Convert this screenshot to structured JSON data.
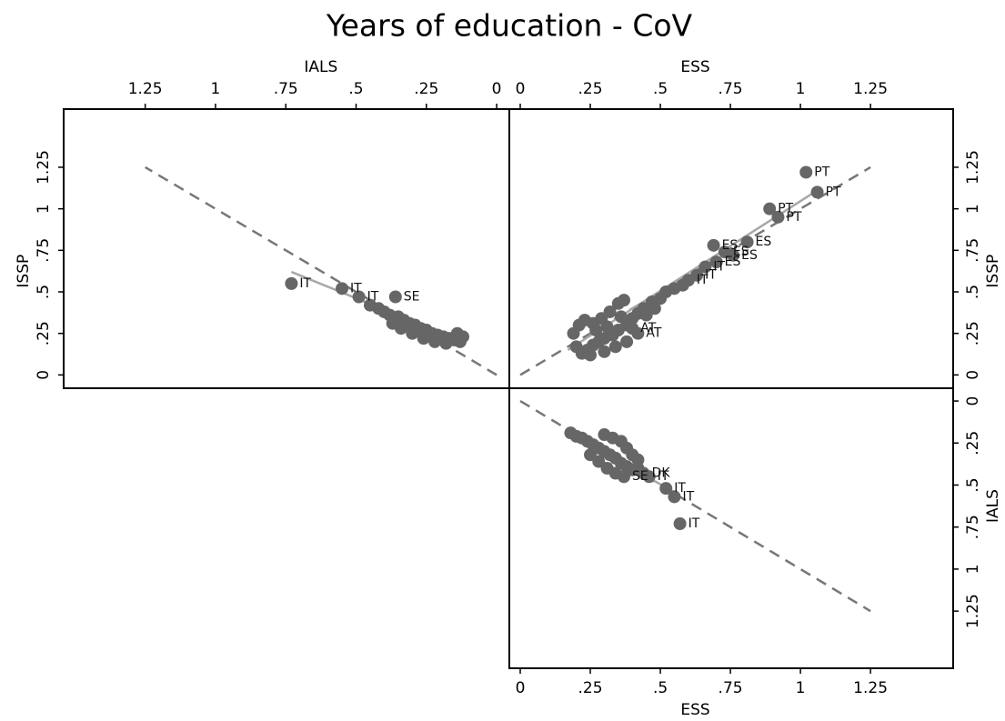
{
  "title": "Years of education - CoV",
  "chart_data": [
    {
      "type": "scatter",
      "x_label": "IALS",
      "y_label": "ISSP",
      "x_axis_side": "top",
      "y_axis_side": "left",
      "color": "#666666",
      "x": [
        0.73,
        0.55,
        0.49,
        0.36,
        0.45,
        0.42,
        0.4,
        0.38,
        0.35,
        0.33,
        0.31,
        0.29,
        0.27,
        0.25,
        0.23,
        0.21,
        0.19,
        0.17,
        0.15,
        0.13,
        0.3,
        0.26,
        0.22,
        0.18,
        0.34,
        0.37,
        0.14,
        0.12
      ],
      "y": [
        0.55,
        0.52,
        0.47,
        0.47,
        0.42,
        0.4,
        0.38,
        0.36,
        0.35,
        0.33,
        0.31,
        0.3,
        0.28,
        0.27,
        0.25,
        0.24,
        0.23,
        0.22,
        0.21,
        0.2,
        0.25,
        0.22,
        0.2,
        0.19,
        0.28,
        0.31,
        0.25,
        0.23
      ],
      "labels": [
        "IT",
        "IT",
        "IT",
        "SE",
        null,
        null,
        null,
        null,
        null,
        null,
        null,
        null,
        null,
        null,
        null,
        null,
        null,
        null,
        null,
        null,
        null,
        null,
        null,
        null,
        null,
        null,
        null,
        null
      ],
      "lines": [
        {
          "style": "dashed",
          "color": "#777777",
          "x": [
            0,
            1.25
          ],
          "y": [
            0,
            1.25
          ]
        },
        {
          "style": "solid",
          "color": "#a8a8a8",
          "x": [
            0.73,
            0.12
          ],
          "y": [
            0.62,
            0.2
          ]
        }
      ],
      "xlim": [
        1.54,
        -0.045
      ],
      "ylim": [
        -0.08,
        1.6
      ],
      "xticks": [
        1.25,
        1,
        {
          "value": 0.75,
          "label": ".75"
        },
        {
          "value": 0.5,
          "label": ".5"
        },
        {
          "value": 0.25,
          "label": ".25"
        },
        0
      ],
      "yticks": [
        0,
        {
          "value": 0.25,
          "label": ".25"
        },
        {
          "value": 0.5,
          "label": ".5"
        },
        {
          "value": 0.75,
          "label": ".75"
        },
        1,
        1.25
      ]
    },
    {
      "type": "scatter",
      "x_label": "ESS",
      "y_label": "ISSP",
      "x_axis_side": "top",
      "y_axis_side": "right",
      "color": "#666666",
      "x": [
        1.02,
        1.06,
        0.89,
        0.92,
        0.81,
        0.69,
        0.73,
        0.76,
        0.7,
        0.66,
        0.63,
        0.6,
        0.58,
        0.55,
        0.52,
        0.5,
        0.47,
        0.44,
        0.42,
        0.4,
        0.38,
        0.35,
        0.33,
        0.3,
        0.28,
        0.26,
        0.24,
        0.22,
        0.2,
        0.19,
        0.21,
        0.23,
        0.26,
        0.29,
        0.32,
        0.35,
        0.37,
        0.4,
        0.42,
        0.38,
        0.34,
        0.3,
        0.25,
        0.27,
        0.31,
        0.45,
        0.48,
        0.36
      ],
      "y": [
        1.22,
        1.1,
        1.0,
        0.95,
        0.8,
        0.78,
        0.74,
        0.72,
        0.68,
        0.65,
        0.6,
        0.57,
        0.54,
        0.52,
        0.5,
        0.46,
        0.44,
        0.4,
        0.37,
        0.34,
        0.3,
        0.27,
        0.24,
        0.22,
        0.2,
        0.18,
        0.15,
        0.13,
        0.17,
        0.25,
        0.3,
        0.33,
        0.31,
        0.34,
        0.38,
        0.43,
        0.45,
        0.28,
        0.25,
        0.2,
        0.17,
        0.14,
        0.12,
        0.27,
        0.29,
        0.36,
        0.4,
        0.35
      ],
      "labels": [
        "PT",
        "PT",
        "PT",
        "PT",
        "ES",
        "ES",
        "ES",
        "ES",
        "ES",
        "IT",
        "IT",
        "IT",
        null,
        null,
        null,
        null,
        null,
        null,
        null,
        null,
        null,
        null,
        null,
        null,
        null,
        null,
        null,
        null,
        null,
        null,
        null,
        null,
        null,
        null,
        null,
        null,
        null,
        "AT",
        "AT",
        null,
        null,
        null,
        null,
        null,
        null,
        null,
        null,
        null
      ],
      "lines": [
        {
          "style": "dashed",
          "color": "#777777",
          "x": [
            0,
            1.25
          ],
          "y": [
            0,
            1.25
          ]
        },
        {
          "style": "solid",
          "color": "#a8a8a8",
          "x": [
            0.17,
            1.05
          ],
          "y": [
            0.15,
            1.1
          ]
        }
      ],
      "xlim": [
        -0.039,
        1.545
      ],
      "ylim": [
        -0.08,
        1.6
      ],
      "xticks": [
        0,
        {
          "value": 0.25,
          "label": ".25"
        },
        {
          "value": 0.5,
          "label": ".5"
        },
        {
          "value": 0.75,
          "label": ".75"
        },
        1,
        1.25
      ],
      "yticks": [
        0,
        {
          "value": 0.25,
          "label": ".25"
        },
        {
          "value": 0.5,
          "label": ".5"
        },
        {
          "value": 0.75,
          "label": ".75"
        },
        1,
        1.25
      ]
    },
    {
      "type": "scatter",
      "x_label": "ESS",
      "y_label": "IALS",
      "x_axis_side": "bottom",
      "y_axis_side": "right",
      "color": "#666666",
      "x": [
        0.57,
        0.55,
        0.52,
        0.18,
        0.2,
        0.22,
        0.24,
        0.26,
        0.28,
        0.3,
        0.32,
        0.34,
        0.36,
        0.38,
        0.4,
        0.42,
        0.44,
        0.46,
        0.25,
        0.28,
        0.31,
        0.34,
        0.37,
        0.3,
        0.33,
        0.36,
        0.38,
        0.4,
        0.42
      ],
      "y": [
        0.73,
        0.57,
        0.52,
        0.19,
        0.21,
        0.22,
        0.24,
        0.26,
        0.28,
        0.3,
        0.32,
        0.34,
        0.37,
        0.39,
        0.41,
        0.4,
        0.43,
        0.45,
        0.32,
        0.36,
        0.4,
        0.43,
        0.45,
        0.2,
        0.22,
        0.24,
        0.28,
        0.32,
        0.35
      ],
      "labels": [
        "IT",
        "IT",
        "IT",
        null,
        null,
        null,
        null,
        null,
        null,
        null,
        null,
        null,
        null,
        null,
        null,
        null,
        "DK",
        "IT",
        null,
        null,
        null,
        null,
        "SE",
        null,
        null,
        null,
        null,
        null,
        null
      ],
      "lines": [
        {
          "style": "dashed",
          "color": "#777777",
          "x": [
            0,
            1.25
          ],
          "y": [
            0,
            1.25
          ]
        },
        {
          "style": "solid",
          "color": "#a8a8a8",
          "x": [
            0.18,
            0.57
          ],
          "y": [
            0.2,
            0.56
          ]
        }
      ],
      "xlim": [
        -0.039,
        1.545
      ],
      "ylim": [
        1.59,
        -0.076
      ],
      "xticks": [
        0,
        {
          "value": 0.25,
          "label": ".25"
        },
        {
          "value": 0.5,
          "label": ".5"
        },
        {
          "value": 0.75,
          "label": ".75"
        },
        1,
        1.25
      ],
      "yticks": [
        0,
        {
          "value": 0.25,
          "label": ".25"
        },
        {
          "value": 0.5,
          "label": ".5"
        },
        {
          "value": 0.75,
          "label": ".75"
        },
        1,
        1.25
      ]
    }
  ]
}
